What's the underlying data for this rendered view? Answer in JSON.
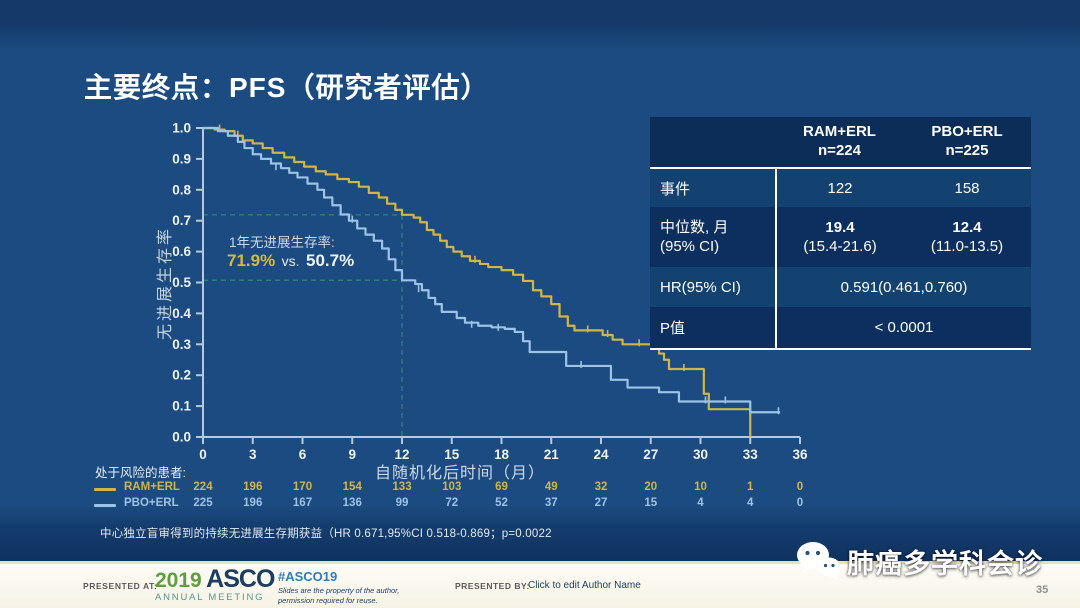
{
  "slide": {
    "title": "主要终点：PFS（研究者评估）",
    "footnote": "中心独立盲审得到的持续无进展生存期获益（HR  0.671,95%CI 0.518-0.869；p=0.0022",
    "page_number": "35",
    "watermark_text": "肺癌多学科会诊",
    "watermark_icon": "wechat-icon"
  },
  "annotation": {
    "line1": "1年无进展生存率:",
    "value1": "71.9%",
    "vs": "vs.",
    "value2": "50.7%"
  },
  "stats_table": {
    "headers": [
      {
        "line1": "RAM+ERL",
        "line2": "n=224"
      },
      {
        "line1": "PBO+ERL",
        "line2": "n=225"
      }
    ],
    "rows": [
      {
        "label": "事件",
        "v1": "122",
        "v2": "158"
      },
      {
        "label1": "中位数, 月",
        "label2": "(95% CI)",
        "v1a": "19.4",
        "v1b": "(15.4-21.6)",
        "v2a": "12.4",
        "v2b": "(11.0-13.5)"
      },
      {
        "label": "HR(95% CI)",
        "value": "0.591(0.461,0.760)"
      },
      {
        "label": "P值",
        "value": "< 0.0001"
      }
    ]
  },
  "chart_data": {
    "type": "line",
    "subtype": "kaplan-meier-step",
    "xlabel": "自随机化后时间（月）",
    "ylabel": "无进展生存率",
    "xlim": [
      0,
      36
    ],
    "ylim": [
      0.0,
      1.0
    ],
    "xticks": [
      0,
      3,
      6,
      9,
      12,
      15,
      18,
      21,
      24,
      27,
      30,
      33,
      36
    ],
    "ytick_labels": [
      "0.0",
      "0.1",
      "0.2",
      "0.3",
      "0.4",
      "0.5",
      "0.6",
      "0.7",
      "0.8",
      "0.9",
      "1.0"
    ],
    "grid": false,
    "axis_color": "#b5cbdd",
    "tick_label_color": "#eef3f8",
    "reference": {
      "x": 12,
      "y_values": [
        0.719,
        0.507
      ],
      "color": "#2e8478",
      "style": "dashed"
    },
    "annotation_1yr_pfs": {
      "RAM+ERL": "71.9%",
      "PBO+ERL": "50.7%"
    },
    "series": [
      {
        "name": "RAM+ERL",
        "color": "#d3b545",
        "points": [
          [
            0,
            1.0
          ],
          [
            0.7,
            0.995
          ],
          [
            1.3,
            0.99
          ],
          [
            1.9,
            0.975
          ],
          [
            2.4,
            0.96
          ],
          [
            3.0,
            0.95
          ],
          [
            3.6,
            0.935
          ],
          [
            4.2,
            0.92
          ],
          [
            4.9,
            0.905
          ],
          [
            5.5,
            0.89
          ],
          [
            6.1,
            0.875
          ],
          [
            6.8,
            0.86
          ],
          [
            7.4,
            0.85
          ],
          [
            8.1,
            0.835
          ],
          [
            8.8,
            0.825
          ],
          [
            9.4,
            0.81
          ],
          [
            10.0,
            0.79
          ],
          [
            10.6,
            0.775
          ],
          [
            11.1,
            0.755
          ],
          [
            11.6,
            0.735
          ],
          [
            12.0,
            0.719
          ],
          [
            12.7,
            0.71
          ],
          [
            13.1,
            0.695
          ],
          [
            13.5,
            0.67
          ],
          [
            13.9,
            0.655
          ],
          [
            14.3,
            0.635
          ],
          [
            14.7,
            0.615
          ],
          [
            15.1,
            0.6
          ],
          [
            15.6,
            0.585
          ],
          [
            16.1,
            0.57
          ],
          [
            16.7,
            0.56
          ],
          [
            17.2,
            0.55
          ],
          [
            18.0,
            0.54
          ],
          [
            18.7,
            0.525
          ],
          [
            19.3,
            0.505
          ],
          [
            19.9,
            0.475
          ],
          [
            20.4,
            0.455
          ],
          [
            21.0,
            0.43
          ],
          [
            21.5,
            0.39
          ],
          [
            22.0,
            0.36
          ],
          [
            22.4,
            0.345
          ],
          [
            24.1,
            0.33
          ],
          [
            24.7,
            0.315
          ],
          [
            25.3,
            0.3
          ],
          [
            27.5,
            0.27
          ],
          [
            27.8,
            0.25
          ],
          [
            28.1,
            0.22
          ],
          [
            30.2,
            0.14
          ],
          [
            30.5,
            0.09
          ],
          [
            33.0,
            0.0
          ]
        ],
        "censor_marks": [
          [
            1.0,
            0.995
          ],
          [
            2.1,
            0.975
          ],
          [
            16.4,
            0.57
          ],
          [
            23.2,
            0.345
          ],
          [
            24.4,
            0.33
          ],
          [
            26.3,
            0.3
          ],
          [
            29.0,
            0.22
          ]
        ]
      },
      {
        "name": "PBO+ERL",
        "color": "#9dc3e6",
        "points": [
          [
            0,
            1.0
          ],
          [
            0.9,
            0.99
          ],
          [
            1.5,
            0.975
          ],
          [
            2.1,
            0.955
          ],
          [
            2.5,
            0.935
          ],
          [
            3.0,
            0.915
          ],
          [
            3.5,
            0.9
          ],
          [
            4.1,
            0.885
          ],
          [
            4.7,
            0.87
          ],
          [
            5.2,
            0.855
          ],
          [
            5.7,
            0.84
          ],
          [
            6.3,
            0.82
          ],
          [
            6.9,
            0.8
          ],
          [
            7.3,
            0.775
          ],
          [
            7.8,
            0.75
          ],
          [
            8.3,
            0.72
          ],
          [
            8.8,
            0.7
          ],
          [
            9.3,
            0.675
          ],
          [
            9.8,
            0.655
          ],
          [
            10.3,
            0.635
          ],
          [
            10.8,
            0.61
          ],
          [
            11.2,
            0.575
          ],
          [
            11.6,
            0.54
          ],
          [
            12.0,
            0.507
          ],
          [
            12.8,
            0.495
          ],
          [
            13.2,
            0.475
          ],
          [
            13.6,
            0.45
          ],
          [
            14.0,
            0.43
          ],
          [
            14.4,
            0.405
          ],
          [
            15.3,
            0.385
          ],
          [
            15.8,
            0.37
          ],
          [
            16.6,
            0.36
          ],
          [
            17.4,
            0.355
          ],
          [
            18.2,
            0.35
          ],
          [
            18.8,
            0.34
          ],
          [
            19.3,
            0.31
          ],
          [
            19.7,
            0.275
          ],
          [
            21.9,
            0.23
          ],
          [
            24.6,
            0.185
          ],
          [
            25.6,
            0.16
          ],
          [
            27.5,
            0.145
          ],
          [
            28.7,
            0.115
          ],
          [
            33.0,
            0.08
          ],
          [
            34.8,
            0.08
          ]
        ],
        "censor_marks": [
          [
            4.4,
            0.87
          ],
          [
            9.0,
            0.7
          ],
          [
            13.0,
            0.475
          ],
          [
            16.2,
            0.36
          ],
          [
            17.8,
            0.35
          ],
          [
            22.8,
            0.23
          ],
          [
            30.3,
            0.115
          ],
          [
            31.5,
            0.115
          ],
          [
            34.7,
            0.08
          ]
        ]
      }
    ]
  },
  "risk_table": {
    "caption": "处于风险的患者:",
    "rows": [
      {
        "name": "RAM+ERL",
        "color": "#d3b545",
        "counts": [
          224,
          196,
          170,
          154,
          133,
          103,
          69,
          49,
          32,
          20,
          10,
          1,
          0
        ]
      },
      {
        "name": "PBO+ERL",
        "color": "#9dc3e6",
        "counts": [
          225,
          196,
          167,
          136,
          99,
          72,
          52,
          37,
          27,
          15,
          4,
          4,
          0
        ]
      }
    ]
  },
  "footer": {
    "presented_at": "PRESENTED AT:",
    "logo_year": "2019",
    "logo_name": "ASCO",
    "logo_sub": "ANNUAL MEETING",
    "hashtag": "#ASCO19",
    "fineprint1": "Slides are the property of the author,",
    "fineprint2": "permission required for reuse.",
    "presented_by_label": "PRESENTED BY:",
    "presented_by_value": "Click to edit Author Name"
  }
}
